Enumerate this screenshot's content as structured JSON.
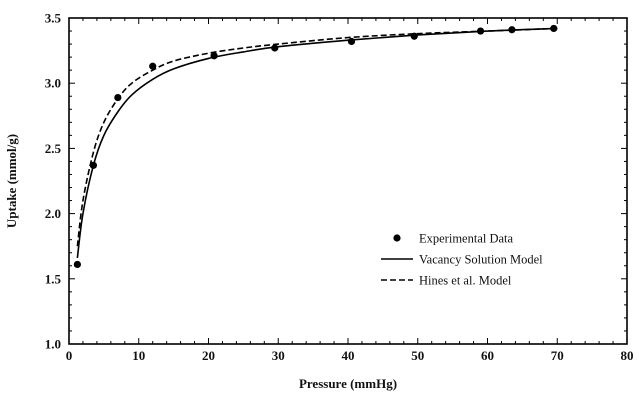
{
  "chart_data": {
    "type": "scatter",
    "title": "",
    "xlabel": "Pressure (mmHg)",
    "ylabel": "Uptake (mmol/g)",
    "xlim": [
      0,
      80
    ],
    "ylim": [
      1.0,
      3.5
    ],
    "x_ticks": [
      0,
      10,
      20,
      30,
      40,
      50,
      60,
      70,
      80
    ],
    "y_ticks": [
      1.0,
      1.5,
      2.0,
      2.5,
      3.0,
      3.5
    ],
    "x_tick_labels": [
      "0",
      "10",
      "20",
      "30",
      "40",
      "50",
      "60",
      "70",
      "80"
    ],
    "y_tick_labels": [
      "1.0",
      "1.5",
      "2.0",
      "2.5",
      "3.0",
      "3.5"
    ],
    "grid": false,
    "legend_position": "center-right",
    "series": [
      {
        "name": "Experimental Data",
        "kind": "markers",
        "color": "#000000",
        "x": [
          1.2,
          3.5,
          7.0,
          12.0,
          20.8,
          29.5,
          40.5,
          49.5,
          59.0,
          63.5,
          69.5
        ],
        "y": [
          1.61,
          2.37,
          2.89,
          3.13,
          3.21,
          3.27,
          3.32,
          3.36,
          3.4,
          3.41,
          3.42
        ]
      },
      {
        "name": "Vacancy Solution Model",
        "kind": "line",
        "style": "solid",
        "color": "#000000",
        "x": [
          1.2,
          2.0,
          3.5,
          5.0,
          7.0,
          9.0,
          12.0,
          15.0,
          20.0,
          25.0,
          30.0,
          40.0,
          50.0,
          60.0,
          70.0
        ],
        "y": [
          1.66,
          2.0,
          2.37,
          2.6,
          2.78,
          2.91,
          3.03,
          3.11,
          3.19,
          3.24,
          3.28,
          3.33,
          3.37,
          3.4,
          3.42
        ]
      },
      {
        "name": "Hines et al. Model",
        "kind": "line",
        "style": "dashed",
        "color": "#000000",
        "x": [
          1.2,
          2.0,
          3.5,
          5.0,
          7.0,
          9.0,
          12.0,
          15.0,
          20.0,
          25.0,
          30.0,
          40.0,
          50.0,
          60.0,
          70.0
        ],
        "y": [
          1.75,
          2.1,
          2.47,
          2.7,
          2.88,
          3.0,
          3.1,
          3.17,
          3.23,
          3.27,
          3.3,
          3.35,
          3.38,
          3.4,
          3.42
        ]
      }
    ]
  }
}
